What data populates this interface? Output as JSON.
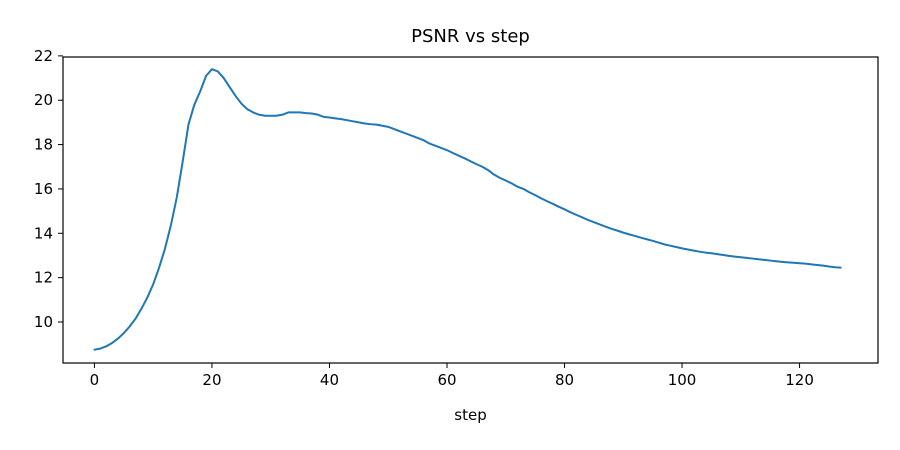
{
  "chart_data": {
    "type": "line",
    "title": "PSNR vs step",
    "xlabel": "step",
    "ylabel": "",
    "xlim": [
      -5.35,
      133.35
    ],
    "ylim": [
      8.15,
      21.95
    ],
    "xticks": [
      0,
      20,
      40,
      60,
      80,
      100,
      120
    ],
    "yticks": [
      10,
      12,
      14,
      16,
      18,
      20,
      22
    ],
    "grid": false,
    "series": [
      {
        "color": "#1f77b4",
        "x": [
          0,
          1,
          2,
          3,
          4,
          5,
          6,
          7,
          8,
          9,
          10,
          11,
          12,
          13,
          14,
          15,
          16,
          17,
          18,
          19,
          20,
          21,
          22,
          23,
          24,
          25,
          26,
          27,
          28,
          29,
          30,
          31,
          32,
          33,
          34,
          35,
          36,
          37,
          38,
          39,
          40,
          41,
          42,
          43,
          44,
          45,
          46,
          47,
          48,
          49,
          50,
          51,
          52,
          53,
          54,
          55,
          56,
          57,
          58,
          59,
          60,
          61,
          62,
          63,
          64,
          65,
          66,
          67,
          68,
          69,
          70,
          71,
          72,
          73,
          74,
          75,
          76,
          77,
          78,
          79,
          80,
          81,
          82,
          83,
          84,
          85,
          86,
          87,
          88,
          89,
          90,
          91,
          92,
          93,
          94,
          95,
          96,
          97,
          98,
          99,
          100,
          101,
          102,
          103,
          104,
          105,
          106,
          107,
          108,
          109,
          110,
          111,
          112,
          113,
          114,
          115,
          116,
          117,
          118,
          119,
          120,
          121,
          122,
          123,
          124,
          125,
          126,
          127
        ],
        "y": [
          8.75,
          8.8,
          8.9,
          9.05,
          9.25,
          9.5,
          9.8,
          10.15,
          10.6,
          11.1,
          11.7,
          12.45,
          13.3,
          14.35,
          15.6,
          17.2,
          18.9,
          19.8,
          20.4,
          21.1,
          21.4,
          21.3,
          21.0,
          20.6,
          20.2,
          19.85,
          19.6,
          19.45,
          19.35,
          19.3,
          19.3,
          19.3,
          19.35,
          19.45,
          19.45,
          19.45,
          19.42,
          19.4,
          19.35,
          19.25,
          19.22,
          19.18,
          19.15,
          19.1,
          19.05,
          19.0,
          18.95,
          18.92,
          18.9,
          18.85,
          18.8,
          18.7,
          18.6,
          18.5,
          18.4,
          18.3,
          18.2,
          18.05,
          17.95,
          17.85,
          17.75,
          17.62,
          17.5,
          17.38,
          17.25,
          17.12,
          17.0,
          16.85,
          16.65,
          16.5,
          16.38,
          16.25,
          16.1,
          16.0,
          15.85,
          15.72,
          15.58,
          15.45,
          15.33,
          15.2,
          15.08,
          14.95,
          14.83,
          14.72,
          14.6,
          14.5,
          14.4,
          14.3,
          14.2,
          14.12,
          14.03,
          13.95,
          13.88,
          13.8,
          13.73,
          13.66,
          13.58,
          13.5,
          13.44,
          13.38,
          13.32,
          13.27,
          13.22,
          13.17,
          13.13,
          13.1,
          13.06,
          13.02,
          12.98,
          12.95,
          12.92,
          12.89,
          12.86,
          12.83,
          12.8,
          12.77,
          12.74,
          12.71,
          12.69,
          12.67,
          12.65,
          12.63,
          12.6,
          12.57,
          12.54,
          12.5,
          12.47,
          12.45
        ]
      }
    ]
  }
}
